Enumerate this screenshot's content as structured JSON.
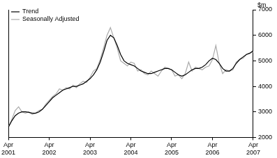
{
  "chart_data": {
    "type": "line",
    "y_label": "$m",
    "categories": [
      "Apr 2001",
      null,
      null,
      null,
      null,
      null,
      null,
      null,
      null,
      null,
      null,
      null,
      "Apr 2002",
      null,
      null,
      null,
      null,
      null,
      null,
      null,
      null,
      null,
      null,
      null,
      "Apr 2003",
      null,
      null,
      null,
      null,
      null,
      null,
      null,
      null,
      null,
      null,
      null,
      "Apr 2004",
      null,
      null,
      null,
      null,
      null,
      null,
      null,
      null,
      null,
      null,
      null,
      "Apr 2005",
      null,
      null,
      null,
      null,
      null,
      null,
      null,
      null,
      null,
      null,
      null,
      "Apr 2006",
      null,
      null,
      null,
      null,
      null,
      null,
      null,
      null,
      null,
      null,
      null,
      "Apr 2007"
    ],
    "series": [
      {
        "name": "Trend",
        "color": "#000000",
        "values": [
          2400,
          2650,
          2850,
          2950,
          3000,
          3000,
          2980,
          2950,
          2950,
          3000,
          3100,
          3250,
          3400,
          3550,
          3650,
          3750,
          3850,
          3900,
          3950,
          4000,
          4000,
          4050,
          4100,
          4200,
          4300,
          4450,
          4650,
          4950,
          5350,
          5800,
          6000,
          5900,
          5600,
          5250,
          5000,
          4900,
          4850,
          4800,
          4700,
          4600,
          4550,
          4500,
          4500,
          4550,
          4600,
          4650,
          4700,
          4700,
          4650,
          4550,
          4450,
          4400,
          4450,
          4550,
          4650,
          4700,
          4700,
          4750,
          4850,
          5000,
          5100,
          5050,
          4900,
          4700,
          4600,
          4600,
          4700,
          4900,
          5050,
          5150,
          5250,
          5300,
          5400
        ]
      },
      {
        "name": "Seasonally Adjusted",
        "color": "#aaaaaa",
        "values": [
          2400,
          2700,
          3050,
          3200,
          3000,
          2950,
          3000,
          2900,
          2950,
          3050,
          3100,
          3300,
          3450,
          3600,
          3700,
          3900,
          3850,
          3950,
          3900,
          4050,
          3950,
          4100,
          4200,
          4150,
          4350,
          4600,
          4700,
          5050,
          5500,
          6000,
          6300,
          5900,
          5500,
          5000,
          4900,
          4800,
          4950,
          4900,
          4600,
          4650,
          4500,
          4450,
          4600,
          4500,
          4400,
          4600,
          4750,
          4700,
          4650,
          4400,
          4450,
          4300,
          4500,
          4950,
          4600,
          4750,
          4700,
          4650,
          4750,
          4800,
          5050,
          5600,
          4900,
          4500,
          4650,
          4600,
          4650,
          4950,
          5050,
          5100,
          5250,
          5300,
          5350
        ]
      }
    ],
    "ylim": [
      2000,
      7000
    ],
    "yticks": [
      2000,
      3000,
      4000,
      5000,
      6000,
      7000
    ],
    "grid": false,
    "legend": "upper left"
  }
}
